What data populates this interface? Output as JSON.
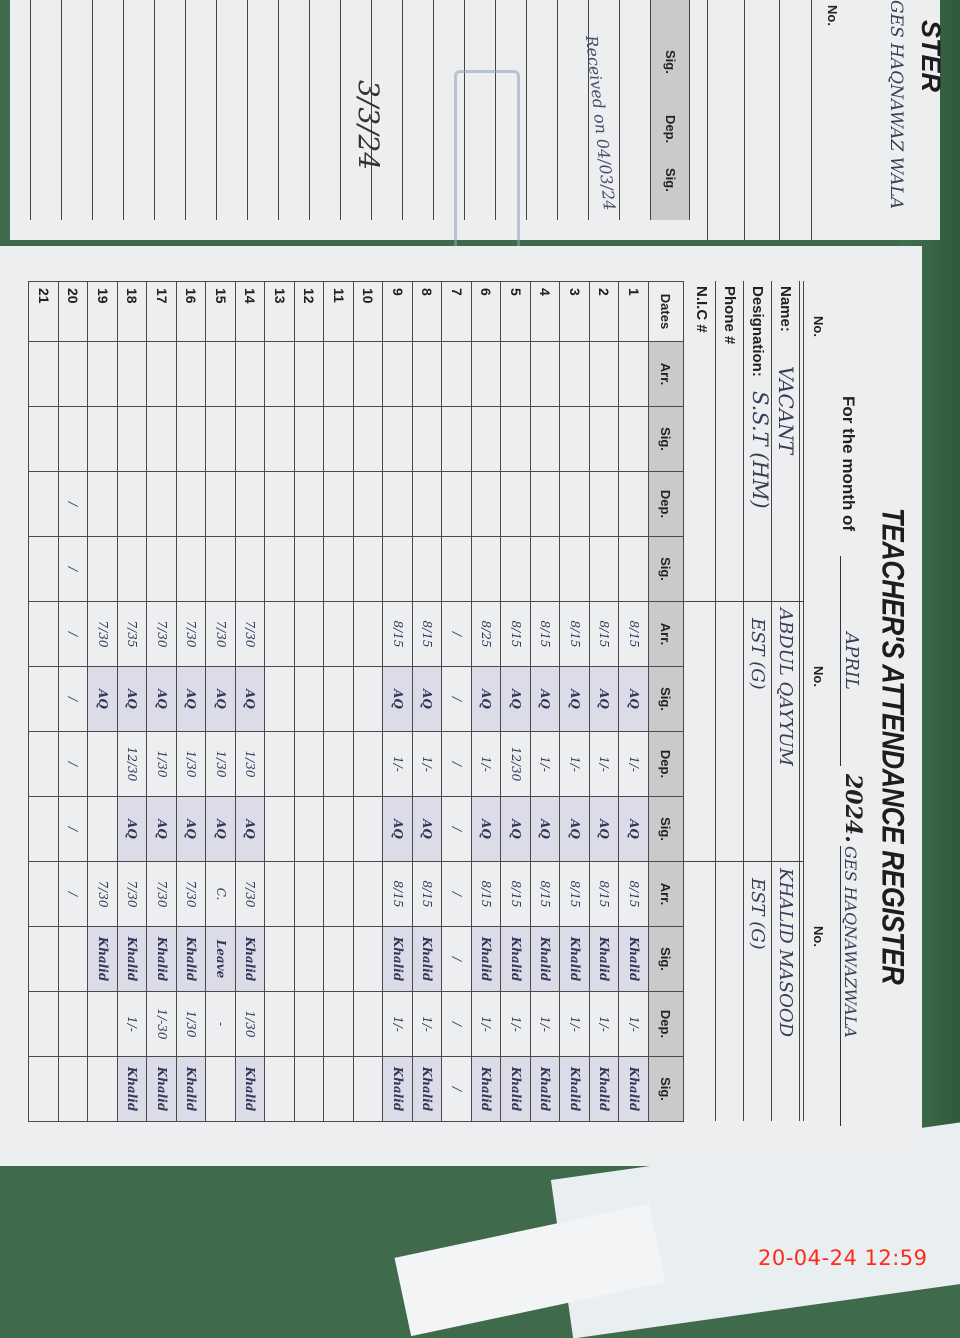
{
  "register": {
    "title": "TEACHER'S ATTENDANCE REGISTER",
    "month_label": "For the month of",
    "month_value": "APRIL",
    "year": "2024.",
    "school": "GES HAQNAWAZWALA",
    "no_label": "No.",
    "labels": {
      "name": "Name:",
      "designation": "Designation:",
      "phone": "Phone #",
      "nic": "N.I.C #"
    },
    "teachers": [
      {
        "name": "VACANT",
        "designation": "S.S.T (HM)"
      },
      {
        "name": "ABDUL QAYYUM",
        "designation": "EST (G)"
      },
      {
        "name": "KHALID MASOOD",
        "designation": "EST (G)"
      }
    ],
    "column_headers": [
      "Dates",
      "Arr.",
      "Sig.",
      "Dep.",
      "Sig.",
      "Arr.",
      "Sig.",
      "Dep.",
      "Sig.",
      "Arr.",
      "Sig.",
      "Dep.",
      "Sig."
    ],
    "rows": [
      {
        "date": "1",
        "cells": [
          "",
          "",
          "",
          "",
          "8/15",
          "AQ",
          "1/-",
          "AQ",
          "8/15",
          "Khalid",
          "1/-",
          "Khalid"
        ]
      },
      {
        "date": "2",
        "cells": [
          "",
          "",
          "",
          "",
          "8/15",
          "AQ",
          "1/-",
          "AQ",
          "8/15",
          "Khalid",
          "1/-",
          "Khalid"
        ]
      },
      {
        "date": "3",
        "cells": [
          "",
          "",
          "",
          "",
          "8/15",
          "AQ",
          "1/-",
          "AQ",
          "8/15",
          "Khalid",
          "1/-",
          "Khalid"
        ]
      },
      {
        "date": "4",
        "cells": [
          "",
          "",
          "",
          "",
          "8/15",
          "AQ",
          "1/-",
          "AQ",
          "8/15",
          "Khalid",
          "1/-",
          "Khalid"
        ]
      },
      {
        "date": "5",
        "cells": [
          "",
          "",
          "",
          "",
          "8/15",
          "AQ",
          "12/30",
          "AQ",
          "8/15",
          "Khalid",
          "1/-",
          "Khalid"
        ]
      },
      {
        "date": "6",
        "cells": [
          "",
          "",
          "",
          "",
          "8/25",
          "AQ",
          "1/-",
          "AQ",
          "8/15",
          "Khalid",
          "1/-",
          "Khalid"
        ]
      },
      {
        "date": "7",
        "cells": [
          "",
          "",
          "",
          "",
          "/",
          "/",
          "/",
          "/",
          "/",
          "/",
          "/",
          "/"
        ]
      },
      {
        "date": "8",
        "cells": [
          "",
          "",
          "",
          "",
          "8/15",
          "AQ",
          "1/-",
          "AQ",
          "8/15",
          "Khalid",
          "1/-",
          "Khalid"
        ]
      },
      {
        "date": "9",
        "cells": [
          "",
          "",
          "",
          "",
          "8/15",
          "AQ",
          "1/-",
          "AQ",
          "8/15",
          "Khalid",
          "1/-",
          "Khalid"
        ]
      },
      {
        "date": "10",
        "cells": [
          "",
          "",
          "",
          "",
          "",
          "",
          "",
          "",
          "",
          "",
          "",
          ""
        ]
      },
      {
        "date": "11",
        "cells": [
          "",
          "",
          "",
          "",
          "",
          "",
          "",
          "",
          "",
          "",
          "",
          ""
        ]
      },
      {
        "date": "12",
        "cells": [
          "",
          "",
          "",
          "",
          "",
          "",
          "",
          "",
          "",
          "",
          "",
          ""
        ]
      },
      {
        "date": "13",
        "cells": [
          "",
          "",
          "",
          "",
          "",
          "",
          "",
          "",
          "",
          "",
          "",
          ""
        ]
      },
      {
        "date": "14",
        "cells": [
          "",
          "",
          "",
          "",
          "7/30",
          "AQ",
          "1/30",
          "AQ",
          "7/30",
          "Khalid",
          "1/30",
          "Khalid"
        ]
      },
      {
        "date": "15",
        "cells": [
          "",
          "",
          "",
          "",
          "7/30",
          "AQ",
          "1/30",
          "AQ",
          "C.",
          "Leave",
          "-",
          ""
        ]
      },
      {
        "date": "16",
        "cells": [
          "",
          "",
          "",
          "",
          "7/30",
          "AQ",
          "1/30",
          "AQ",
          "7/30",
          "Khalid",
          "1/30",
          "Khalid"
        ]
      },
      {
        "date": "17",
        "cells": [
          "",
          "",
          "",
          "",
          "7/30",
          "AQ",
          "1/30",
          "AQ",
          "7/30",
          "Khalid",
          "1/-30",
          "Khalid"
        ]
      },
      {
        "date": "18",
        "cells": [
          "",
          "",
          "",
          "",
          "7/35",
          "AQ",
          "12/30",
          "AQ",
          "7/30",
          "Khalid",
          "1/-",
          "Khalid"
        ]
      },
      {
        "date": "19",
        "cells": [
          "",
          "",
          "",
          "",
          "7/30",
          "AQ",
          "",
          "",
          "7/30",
          "Khalid",
          "",
          ""
        ]
      },
      {
        "date": "20",
        "cells": [
          "",
          "",
          "/",
          "/",
          "/",
          "/",
          "/",
          "/",
          "/",
          "",
          "",
          ""
        ]
      },
      {
        "date": "21",
        "cells": [
          "",
          "",
          "",
          "",
          "",
          "",
          "",
          "",
          "",
          "",
          "",
          ""
        ]
      }
    ]
  },
  "left_page": {
    "title_fragment": "STER",
    "school": "GES HAQNAWAZ WALA",
    "no_label": "No.",
    "column_headers": [
      "Sig.",
      "Dep.",
      "Sig."
    ],
    "note": "Received on 04/03/24",
    "date_note": "3/3/24"
  },
  "photo_timestamp": "20-04-24  12:59",
  "colors": {
    "timestamp": "#ff2a1a",
    "header_fill": "#c9cacc",
    "ink": "#343757",
    "background": "#3f6b4c"
  }
}
